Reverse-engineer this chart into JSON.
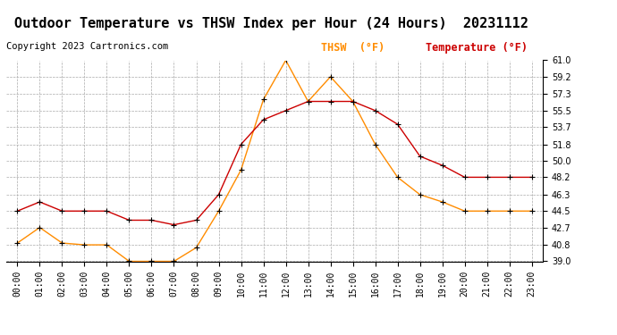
{
  "title": "Outdoor Temperature vs THSW Index per Hour (24 Hours)  20231112",
  "copyright": "Copyright 2023 Cartronics.com",
  "hours": [
    "00:00",
    "01:00",
    "02:00",
    "03:00",
    "04:00",
    "05:00",
    "06:00",
    "07:00",
    "08:00",
    "09:00",
    "10:00",
    "11:00",
    "12:00",
    "13:00",
    "14:00",
    "15:00",
    "16:00",
    "17:00",
    "18:00",
    "19:00",
    "20:00",
    "21:00",
    "22:00",
    "23:00"
  ],
  "temperature": [
    44.5,
    45.5,
    44.5,
    44.5,
    44.5,
    43.5,
    43.5,
    43.0,
    43.5,
    46.3,
    51.8,
    54.5,
    55.5,
    56.5,
    56.5,
    56.5,
    55.5,
    54.0,
    50.5,
    49.5,
    48.2,
    48.2,
    48.2,
    48.2
  ],
  "thsw": [
    41.0,
    42.7,
    41.0,
    40.8,
    40.8,
    39.0,
    39.0,
    39.0,
    40.5,
    44.5,
    49.0,
    56.7,
    61.0,
    56.5,
    59.2,
    56.5,
    51.8,
    48.2,
    46.3,
    45.5,
    44.5,
    44.5,
    44.5,
    44.5
  ],
  "temp_color": "#cc0000",
  "thsw_color": "#ff8c00",
  "marker_color": "black",
  "marker": "+",
  "ylim_min": 39.0,
  "ylim_max": 61.0,
  "yticks": [
    39.0,
    40.8,
    42.7,
    44.5,
    46.3,
    48.2,
    50.0,
    51.8,
    53.7,
    55.5,
    57.3,
    59.2,
    61.0
  ],
  "legend_thsw": "THSW  (°F)",
  "legend_temp": "Temperature (°F)",
  "bg_color": "#ffffff",
  "grid_color": "#aaaaaa",
  "title_fontsize": 11,
  "copyright_fontsize": 7.5,
  "legend_fontsize": 8.5,
  "tick_fontsize": 7
}
